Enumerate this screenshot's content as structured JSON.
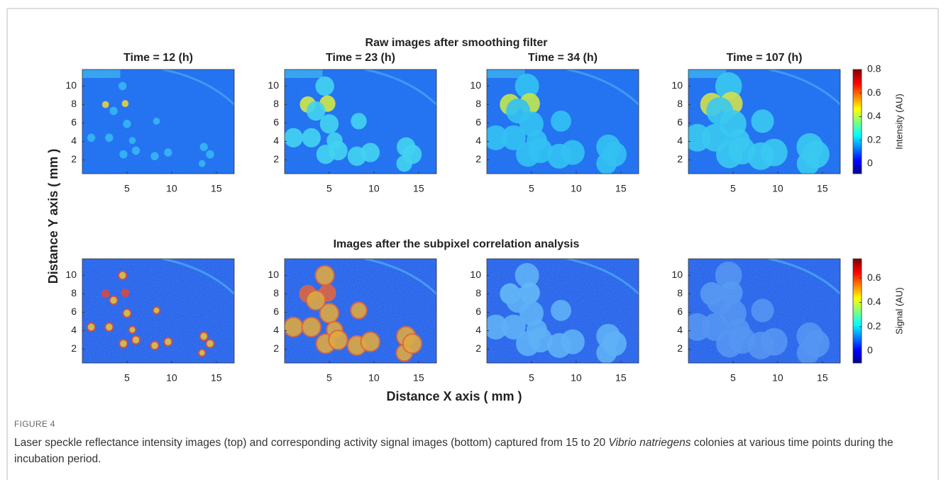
{
  "figure": {
    "row_titles": [
      "Raw images after smoothing filter",
      "Images after the subpixel correlation analysis"
    ],
    "panel_titles": [
      "Time = 12 (h)",
      "Time = 23 (h)",
      "Time = 34 (h)",
      "Time = 107 (h)"
    ],
    "x_label": "Distance X axis ( mm )",
    "y_label": "Distance Y axis ( mm )",
    "xlim": [
      0,
      17
    ],
    "ylim": [
      0.5,
      11.8
    ],
    "xticks": [
      5,
      10,
      15
    ],
    "yticks": [
      2,
      4,
      6,
      8,
      10
    ],
    "colorbars": [
      {
        "label": "Intensity (AU)",
        "lim": [
          -0.085,
          0.8
        ],
        "ticks": [
          0,
          0.2,
          0.4,
          0.6,
          0.8
        ]
      },
      {
        "label": "Signal (AU)",
        "lim": [
          -0.1,
          0.76
        ],
        "ticks": [
          0,
          0.2,
          0.4,
          0.6
        ]
      }
    ]
  },
  "caption": {
    "label": "FIGURE 4",
    "text_parts": [
      "Laser speckle reflectance intensity images (top) and corresponding activity signal images (bottom) captured from 15 to 20 ",
      "Vibrio natriegens",
      " colonies at various time points during the incubation period."
    ]
  }
}
